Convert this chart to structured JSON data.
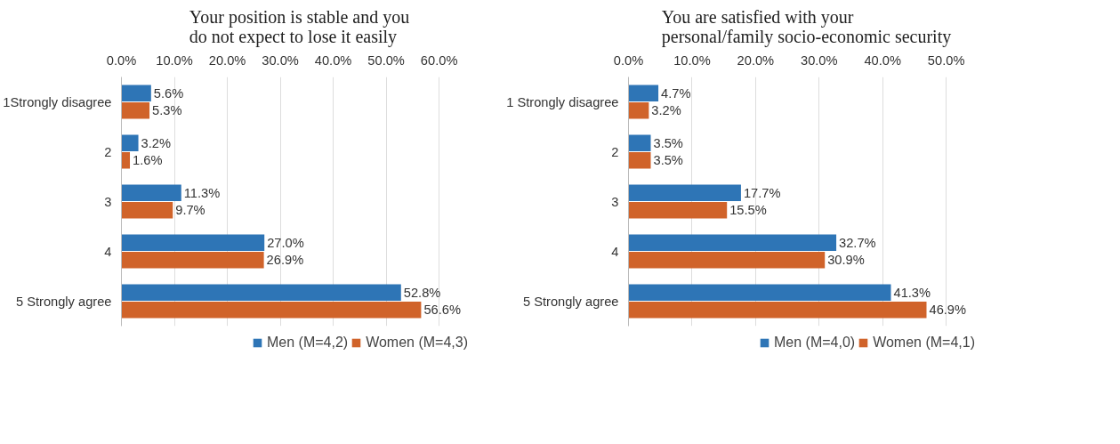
{
  "chart_data": [
    {
      "type": "bar",
      "orientation": "horizontal",
      "title": "Your position is stable and you do not expect to lose it easily",
      "categories": [
        "1Strongly disagree",
        "2",
        "3",
        "4",
        "5 Strongly agree"
      ],
      "series": [
        {
          "name": "Men (M=4,2)",
          "color": "#2e75b6",
          "values": [
            5.6,
            3.2,
            11.3,
            27.0,
            52.8
          ],
          "value_labels": [
            "5.6%",
            "3.2%",
            "11.3%",
            "27.0%",
            "52.8%"
          ]
        },
        {
          "name": "Women (M=4,3)",
          "color": "#d0632a",
          "values": [
            5.3,
            1.6,
            9.7,
            26.9,
            56.6
          ],
          "value_labels": [
            "5.3%",
            "1.6%",
            "9.7%",
            "26.9%",
            "56.6%"
          ]
        }
      ],
      "xlim": [
        0,
        60
      ],
      "xticks": [
        {
          "value": 0,
          "label": "0.0%"
        },
        {
          "value": 10,
          "label": "10.0%"
        },
        {
          "value": 20,
          "label": "20.0%"
        },
        {
          "value": 30,
          "label": "30.0%"
        },
        {
          "value": 40,
          "label": "40.0%"
        },
        {
          "value": 50,
          "label": "50.0%"
        },
        {
          "value": 60,
          "label": "60.0%"
        }
      ],
      "grid": "x",
      "legend": "bottom"
    },
    {
      "type": "bar",
      "orientation": "horizontal",
      "title": "You are satisfied with your personal/family socio-economic security",
      "categories": [
        "1 Strongly disagree",
        "2",
        "3",
        "4",
        "5 Strongly agree"
      ],
      "series": [
        {
          "name": "Men (M=4,0)",
          "color": "#2e75b6",
          "values": [
            4.7,
            3.5,
            17.7,
            32.7,
            41.3
          ],
          "value_labels": [
            "4.7%",
            "3.5%",
            "17.7%",
            "32.7%",
            "41.3%"
          ]
        },
        {
          "name": "Women (M=4,1)",
          "color": "#d0632a",
          "values": [
            3.2,
            3.5,
            15.5,
            30.9,
            46.9
          ],
          "value_labels": [
            "3.2%",
            "3.5%",
            "15.5%",
            "30.9%",
            "46.9%"
          ]
        }
      ],
      "xlim": [
        0,
        50
      ],
      "xticks": [
        {
          "value": 0,
          "label": "0.0%"
        },
        {
          "value": 10,
          "label": "10.0%"
        },
        {
          "value": 20,
          "label": "20.0%"
        },
        {
          "value": 30,
          "label": "30.0%"
        },
        {
          "value": 40,
          "label": "40.0%"
        },
        {
          "value": 50,
          "label": "50.0%"
        }
      ],
      "grid": "x",
      "legend": "bottom"
    }
  ]
}
